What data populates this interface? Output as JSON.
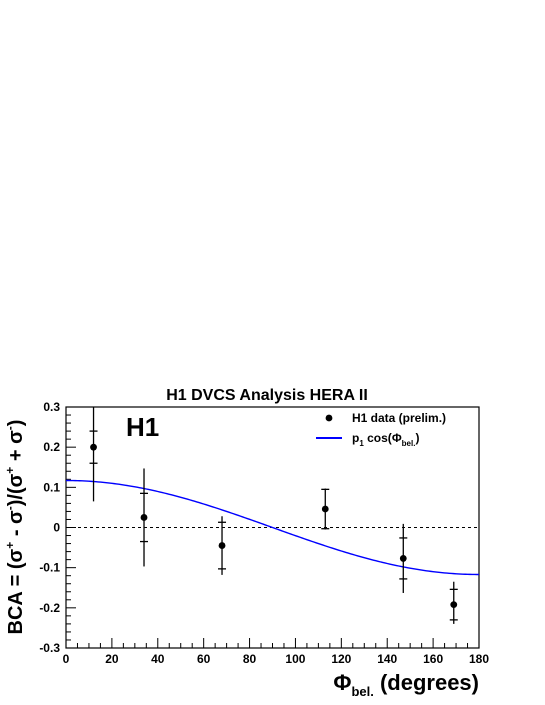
{
  "chart_data": {
    "type": "scatter",
    "title": "H1 DVCS Analysis HERA II",
    "watermark": "H1",
    "ylabel": {
      "prefix": "BCA = (",
      "s1": "σ",
      "s1_sup": "+",
      "minus": " - ",
      "s2": "σ",
      "s2_sup": "-",
      "mid": ")/(",
      "s3": "σ",
      "s3_sup": "+",
      "plus": " + ",
      "s4": "σ",
      "s4_sup": "-",
      "suffix": ")"
    },
    "xlabel": {
      "phi": "Φ",
      "sub": "bel.",
      "units": " (degrees)"
    },
    "xlim": [
      0,
      180
    ],
    "ylim": [
      -0.3,
      0.3
    ],
    "xticks": [
      0,
      20,
      40,
      60,
      80,
      100,
      120,
      140,
      160,
      180
    ],
    "xtick_labels": [
      "0",
      "20",
      "40",
      "60",
      "80",
      "100",
      "120",
      "140",
      "160",
      "180"
    ],
    "yticks": [
      -0.3,
      -0.2,
      -0.1,
      0,
      0.1,
      0.2,
      0.3
    ],
    "ytick_labels": [
      "-0.3",
      "-0.2",
      "-0.1",
      "0",
      "0.1",
      "0.2",
      "0.3"
    ],
    "zero_line": true,
    "grid": false,
    "legend": {
      "placement": "top-right",
      "data_label": "H1 data (prelim.)",
      "fit_p": "p",
      "fit_p_sub": "1",
      "fit_cos": " cos(",
      "fit_phi": "Φ",
      "fit_phi_sub": "bel.",
      "fit_close": ")"
    },
    "series": [
      {
        "name": "H1 data (prelim.)",
        "marker": "circle",
        "color": "#000000",
        "points": [
          {
            "x": 12,
            "y": 0.2,
            "stat": [
              0.16,
              0.24
            ],
            "tot": [
              0.065,
              0.3
            ]
          },
          {
            "x": 34,
            "y": 0.025,
            "stat": [
              -0.035,
              0.085
            ],
            "tot": [
              -0.097,
              0.147
            ]
          },
          {
            "x": 68,
            "y": -0.045,
            "stat": [
              -0.103,
              0.013
            ],
            "tot": [
              -0.118,
              0.028
            ]
          },
          {
            "x": 113,
            "y": 0.046,
            "stat": [
              -0.003,
              0.095
            ],
            "tot": [
              -0.005,
              0.097
            ]
          },
          {
            "x": 147,
            "y": -0.077,
            "stat": [
              -0.128,
              -0.026
            ],
            "tot": [
              -0.163,
              0.009
            ]
          },
          {
            "x": 169,
            "y": -0.192,
            "stat": [
              -0.23,
              -0.154
            ],
            "tot": [
              -0.24,
              -0.135
            ]
          }
        ]
      },
      {
        "name": "p1 cos(Φbel.)",
        "type": "line",
        "color": "#0000ff",
        "function": "p1*cos(x)",
        "p1": 0.117
      }
    ]
  }
}
